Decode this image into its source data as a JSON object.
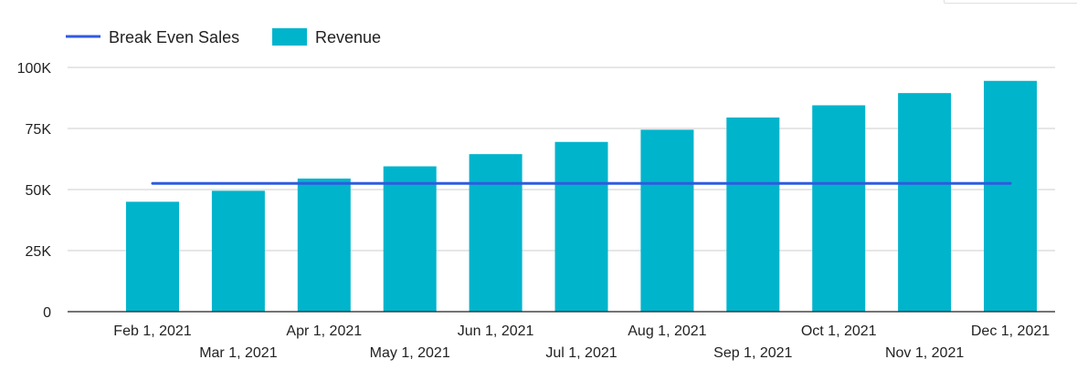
{
  "chart_data": {
    "type": "bar",
    "categories": [
      "Feb 1, 2021",
      "Mar 1, 2021",
      "Apr 1, 2021",
      "May 1, 2021",
      "Jun 1, 2021",
      "Jul 1, 2021",
      "Aug 1, 2021",
      "Sep 1, 2021",
      "Oct 1, 2021",
      "Nov 1, 2021",
      "Dec 1, 2021"
    ],
    "series": [
      {
        "name": "Revenue",
        "type": "bar",
        "color": "#00b4cc",
        "values": [
          45000,
          49500,
          54500,
          59500,
          64500,
          69500,
          74500,
          79500,
          84500,
          89500,
          94500
        ]
      },
      {
        "name": "Break Even Sales",
        "type": "line",
        "color": "#2f5be0",
        "values": [
          52500,
          52500,
          52500,
          52500,
          52500,
          52500,
          52500,
          52500,
          52500,
          52500,
          52500
        ]
      }
    ],
    "title": "",
    "xlabel": "",
    "ylabel": "",
    "ylim": [
      0,
      100000
    ],
    "yticks": [
      {
        "value": 0,
        "label": "0"
      },
      {
        "value": 25000,
        "label": "25K"
      },
      {
        "value": 50000,
        "label": "50K"
      },
      {
        "value": 75000,
        "label": "75K"
      },
      {
        "value": 100000,
        "label": "100K"
      }
    ],
    "grid": true,
    "legend_position": "top-left"
  },
  "legend": {
    "break_even_label": "Break Even Sales",
    "revenue_label": "Revenue"
  }
}
